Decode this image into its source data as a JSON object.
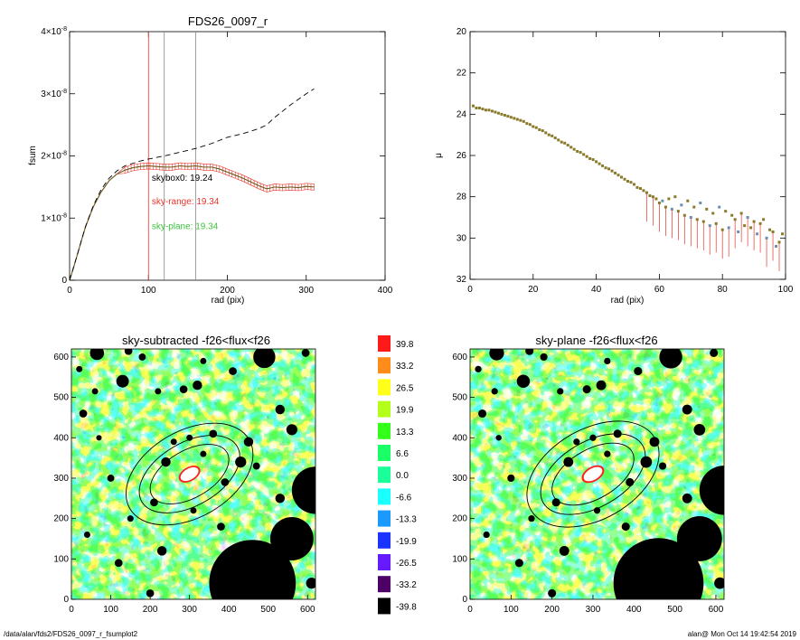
{
  "footer": {
    "path": "/data/alan/fds2/FDS26_0097_r_fsumplot2",
    "stamp": "alan@  Mon Oct 14 19:42:54 2019"
  },
  "colors": {
    "profile": "#e8342a",
    "dashed": "#000000",
    "skybox_text": "#000000",
    "skyrange_text": "#e8342a",
    "skyplane_text": "#3ec43e",
    "vline_red": "#e8342a",
    "vline_grey": "#888888"
  },
  "chart_data": [
    {
      "id": "growth",
      "type": "line",
      "title": "FDS26_0097_r",
      "xlabel": "rad (pix)",
      "ylabel": "fsum",
      "xlim": [
        0,
        400
      ],
      "ylim": [
        0,
        4e-08
      ],
      "xticks": [
        0,
        100,
        200,
        300,
        400
      ],
      "xtick_labels": [
        "0",
        "100",
        "200",
        "300",
        "400"
      ],
      "yticks": [
        0,
        1e-08,
        2e-08,
        3e-08,
        4e-08
      ],
      "ytick_labels": [
        {
          "m": "0",
          "e": ""
        },
        {
          "m": "1×10",
          "e": "-8"
        },
        {
          "m": "2×10",
          "e": "-8"
        },
        {
          "m": "3×10",
          "e": "-8"
        },
        {
          "m": "4×10",
          "e": "-8"
        }
      ],
      "vlines": [
        {
          "x": 100,
          "color": "red"
        },
        {
          "x": 120,
          "color": "grey"
        },
        {
          "x": 160,
          "color": "grey"
        }
      ],
      "annotations": [
        {
          "text": "skybox0: 19.24",
          "x": 150,
          "y": 1.6e-08,
          "color": "skybox"
        },
        {
          "text": "sky-range: 19.34",
          "x": 150,
          "y": 1.22e-08,
          "color": "skyrange"
        },
        {
          "text": "sky-plane: 19.34",
          "x": 150,
          "y": 8.2e-09,
          "color": "skyplane"
        }
      ],
      "series": [
        {
          "style": "solid",
          "x": [
            0,
            5,
            10,
            15,
            20,
            25,
            30,
            40,
            50,
            60,
            70,
            80,
            90,
            100,
            110,
            120,
            130,
            140,
            150,
            160,
            170,
            180,
            190,
            200,
            210,
            220,
            230,
            240,
            250,
            260,
            270,
            280,
            290,
            300,
            310
          ],
          "y": [
            0,
            2e-09,
            4.2e-09,
            6.4e-09,
            8.5e-09,
            1.02e-08,
            1.18e-08,
            1.42e-08,
            1.6e-08,
            1.71e-08,
            1.77e-08,
            1.81e-08,
            1.83e-08,
            1.84e-08,
            1.83e-08,
            1.82e-08,
            1.82e-08,
            1.84e-08,
            1.83e-08,
            1.84e-08,
            1.82e-08,
            1.82e-08,
            1.79e-08,
            1.74e-08,
            1.69e-08,
            1.64e-08,
            1.58e-08,
            1.52e-08,
            1.47e-08,
            1.5e-08,
            1.49e-08,
            1.5e-08,
            1.49e-08,
            1.51e-08,
            1.5e-08
          ],
          "err": 5e-10
        },
        {
          "style": "dashed",
          "x": [
            0,
            10,
            20,
            30,
            40,
            50,
            60,
            70,
            80,
            90,
            100,
            120,
            140,
            160,
            180,
            200,
            220,
            240,
            250,
            260,
            280,
            300,
            310
          ],
          "y": [
            0,
            4.2e-09,
            8.6e-09,
            1.2e-08,
            1.46e-08,
            1.64e-08,
            1.76e-08,
            1.84e-08,
            1.88e-08,
            1.92e-08,
            1.95e-08,
            2e-08,
            2.06e-08,
            2.12e-08,
            2.2e-08,
            2.3e-08,
            2.36e-08,
            2.44e-08,
            2.5e-08,
            2.62e-08,
            2.82e-08,
            3e-08,
            3.08e-08
          ]
        }
      ]
    },
    {
      "id": "surface-brightness",
      "type": "scatter",
      "title": "",
      "xlabel": "rad (pix)",
      "ylabel": "μ",
      "xlim": [
        0,
        100
      ],
      "ylim": [
        32,
        20
      ],
      "xticks": [
        0,
        20,
        40,
        60,
        80,
        100
      ],
      "yticks": [
        20,
        22,
        24,
        26,
        28,
        30,
        32
      ],
      "x": [
        1,
        2,
        3,
        4,
        5,
        6,
        7,
        8,
        9,
        10,
        11,
        12,
        13,
        14,
        15,
        16,
        17,
        18,
        19,
        20,
        21,
        22,
        23,
        24,
        25,
        26,
        27,
        28,
        29,
        30,
        31,
        32,
        33,
        34,
        35,
        36,
        37,
        38,
        39,
        40,
        41,
        42,
        43,
        44,
        45,
        46,
        47,
        48,
        49,
        50,
        51,
        52,
        53,
        54,
        55,
        56,
        57,
        58,
        59,
        60,
        61,
        62,
        63,
        64,
        65,
        66,
        67,
        68,
        69,
        70,
        71,
        72,
        73,
        74,
        75,
        76,
        77,
        78,
        79,
        80,
        81,
        82,
        83,
        84,
        85,
        86,
        87,
        88,
        89,
        90,
        91,
        92,
        93,
        94,
        95,
        96,
        97,
        98,
        99
      ],
      "y": [
        23.6,
        23.7,
        23.7,
        23.75,
        23.8,
        23.8,
        23.85,
        23.9,
        23.95,
        24.0,
        24.05,
        24.1,
        24.15,
        24.2,
        24.25,
        24.3,
        24.35,
        24.45,
        24.5,
        24.6,
        24.65,
        24.75,
        24.8,
        24.9,
        25.0,
        25.05,
        25.15,
        25.25,
        25.35,
        25.4,
        25.5,
        25.6,
        25.7,
        25.8,
        25.85,
        25.95,
        26.05,
        26.15,
        26.2,
        26.3,
        26.4,
        26.5,
        26.6,
        26.65,
        26.75,
        26.85,
        26.95,
        27.05,
        27.15,
        27.25,
        27.3,
        27.4,
        27.55,
        27.6,
        27.7,
        27.8,
        27.95,
        28.0,
        28.1,
        28.3,
        28.2,
        28.5,
        28.1,
        28.6,
        28.0,
        28.7,
        28.4,
        28.9,
        28.2,
        29.0,
        28.5,
        29.1,
        28.3,
        29.2,
        28.6,
        29.4,
        28.8,
        29.3,
        28.5,
        29.6,
        28.7,
        29.5,
        28.9,
        29.1,
        29.7,
        28.8,
        29.4,
        29.0,
        29.5,
        29.2,
        29.8,
        29.3,
        29.1,
        30.0,
        29.6,
        29.7,
        30.4,
        30.2,
        29.8
      ]
    },
    {
      "id": "sky-subtracted-map",
      "type": "heatmap",
      "title": "sky-subtracted -f26<flux<f26",
      "xlim": [
        0,
        620
      ],
      "ylim": [
        0,
        620
      ],
      "ticks": [
        0,
        100,
        200,
        300,
        400,
        500,
        600
      ]
    },
    {
      "id": "sky-plane-map",
      "type": "heatmap",
      "title": "sky-plane -f26<flux<f26",
      "xlim": [
        0,
        620
      ],
      "ylim": [
        0,
        620
      ],
      "ticks": [
        0,
        100,
        200,
        300,
        400,
        500,
        600
      ]
    },
    {
      "id": "colorbar",
      "type": "heatmap",
      "levels": [
        "39.8",
        "33.2",
        "26.5",
        "19.9",
        "13.3",
        "6.6",
        "0.0",
        "-6.6",
        "-13.3",
        "-19.9",
        "-26.5",
        "-33.2",
        "-39.8"
      ],
      "colors": [
        "#ff1a1a",
        "#ff8c1a",
        "#ffff1a",
        "#b3ff1a",
        "#33ff1a",
        "#1aff66",
        "#1aff99",
        "#1affff",
        "#1a99ff",
        "#1a33ff",
        "#661aff",
        "#4d0066",
        "#000000"
      ]
    }
  ]
}
